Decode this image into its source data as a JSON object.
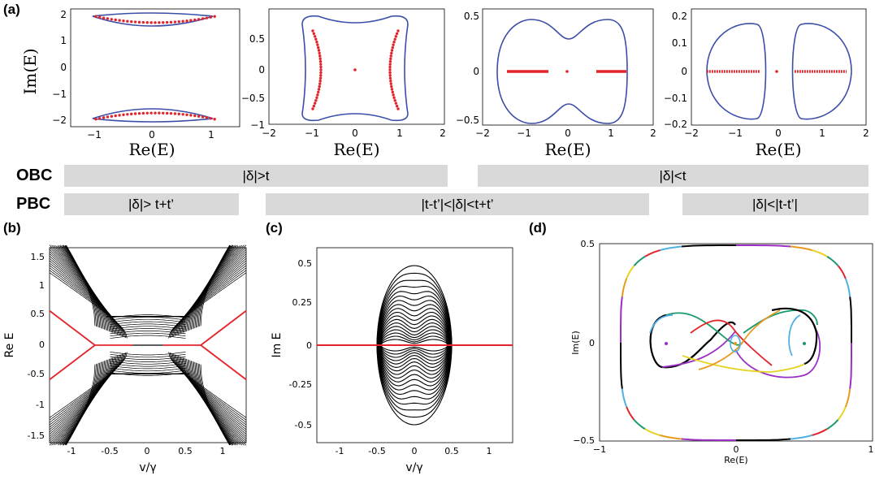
{
  "panel_labels": {
    "a": "(a)",
    "b": "(b)",
    "c": "(c)",
    "d": "(d)"
  },
  "panel_a": {
    "ylabel": "Im(E)",
    "xlabel": "Re(E)",
    "subplots": [
      {
        "xticks": [
          "−1",
          "0",
          "1"
        ],
        "yticks": [
          "2",
          "1",
          "0",
          "−1",
          "−2"
        ]
      },
      {
        "xticks": [
          "−2",
          "−1",
          "0",
          "1",
          "2"
        ],
        "yticks": [
          "0.5",
          "0",
          "−0.5",
          "−1"
        ]
      },
      {
        "xticks": [
          "−2",
          "−1",
          "0",
          "1",
          "2"
        ],
        "yticks": [
          "0.5",
          "0",
          "−0.5"
        ]
      },
      {
        "xticks": [
          "−2",
          "−1",
          "0",
          "1",
          "2"
        ],
        "yticks": [
          "0.2",
          "0.1",
          "0",
          "−0.1",
          "−0.2"
        ]
      }
    ]
  },
  "phase_rows": {
    "obc": {
      "label": "OBC",
      "regions": [
        "|δ|>t",
        "|δ|<t"
      ]
    },
    "pbc": {
      "label": "PBC",
      "regions": [
        "|δ|> t+t’",
        "|t-t’|<|δ|<t+t’",
        "|δ|<|t-t’|"
      ]
    }
  },
  "panel_b": {
    "ylabel": "Re E",
    "xlabel": "v/γ",
    "xticks": [
      "-1",
      "-0.5",
      "0",
      "0.5",
      "1"
    ],
    "yticks": [
      "1.5",
      "1",
      "0.5",
      "0",
      "-0.5",
      "-1",
      "-1.5"
    ]
  },
  "panel_c": {
    "ylabel": "Im E",
    "xlabel": "v/γ",
    "xticks": [
      "-1",
      "-0.5",
      "0",
      "0.5",
      "1"
    ],
    "yticks": [
      "0.5",
      "0.25",
      "0",
      "-0.25",
      "-0.5"
    ]
  },
  "panel_d": {
    "ylabel": "Im(E)",
    "xlabel": "Re(E)",
    "xticks": [
      "−1",
      "0",
      "1"
    ],
    "yticks": [
      "0.5",
      "0",
      "−0.5"
    ]
  },
  "colors": {
    "blue": "#3b4ea8",
    "red": "#e3242b",
    "black": "#000000",
    "purple": "#9b2fc4",
    "orange": "#e89a1c",
    "green": "#1a9a6c",
    "cyan": "#4fb1e3",
    "yellow": "#e6d422",
    "band": "#d9d9d9"
  },
  "chart_data": [
    {
      "type": "scatter",
      "panel": "a1",
      "x_range": [
        -1.35,
        1.35
      ],
      "y_range": [
        -2.15,
        2.15
      ],
      "series": [
        {
          "name": "",
          "kind": "PBC loop",
          "values": "two closed crescent loops around Im=±1.7, Re in [-1,1]"
        },
        {
          "name": "",
          "kind": "OBC points",
          "values": "arcs Im=±(1.9-0.25*(1-x^2)), x in [-0.95,0.95]"
        }
      ]
    },
    {
      "type": "scatter",
      "panel": "a2",
      "x_range": [
        -2,
        2
      ],
      "y_range": [
        -1,
        0.8
      ],
      "series": [
        {
          "name": "",
          "kind": "PBC loop",
          "values": "rounded rectangle-like loop, Re in [-1.25,1.25], Im in [-0.9,0.73]"
        },
        {
          "name": "",
          "kind": "OBC points",
          "values": "two arcs at Re≈±1 curving inward, Im in [-0.65,0.65]; point at 0"
        }
      ]
    },
    {
      "type": "scatter",
      "panel": "a3",
      "x_range": [
        -2,
        2
      ],
      "y_range": [
        -0.55,
        0.55
      ],
      "series": [
        {
          "name": "",
          "kind": "PBC loop",
          "values": "peanut-shaped loop, Re in [-1.3,1.4], Im in [-0.5,0.5]"
        },
        {
          "name": "",
          "kind": "OBC points",
          "values": "Im=0 for Re in [-1.25,-0.7] and [0.7,1.35]; point at 0"
        }
      ]
    },
    {
      "type": "scatter",
      "panel": "a4",
      "x_range": [
        -2,
        2
      ],
      "y_range": [
        -0.22,
        0.22
      ],
      "series": [
        {
          "name": "",
          "kind": "PBC loops",
          "values": "two separate loops, Re in [-1.6,-0.45] and [0.45,1.6]"
        },
        {
          "name": "",
          "kind": "OBC points",
          "values": "Im=0 for Re in [-1.5,-0.4] and [0.4,1.55]; point at 0"
        }
      ]
    },
    {
      "type": "line",
      "panel": "b",
      "x_range": [
        -1.3,
        1.3
      ],
      "y_range": [
        -1.7,
        1.7
      ],
      "series": [
        {
          "name": "",
          "kind": "bulk bands (black)",
          "values": "family of curves E=±sqrt(v^2-c^2) bounded by |E|>=0.5 outside |v|<0.5"
        },
        {
          "name": "",
          "kind": "edge modes (red)",
          "values": "E=±(|v|-0.7) style crossing curves meeting near v=±0.2, E=0"
        }
      ]
    },
    {
      "type": "line",
      "panel": "c",
      "x_range": [
        -1.3,
        1.3
      ],
      "y_range": [
        -0.6,
        0.6
      ],
      "series": [
        {
          "name": "",
          "kind": "bulk (black)",
          "values": "nested loops filling |v|<0.5, |Im E|<=0.5"
        },
        {
          "name": "",
          "kind": "edge (red)",
          "values": "Im E = 0 for all v"
        }
      ]
    },
    {
      "type": "line",
      "panel": "d",
      "x_range": [
        -1,
        1
      ],
      "y_range": [
        -0.5,
        0.5
      ],
      "series": [
        {
          "name": "",
          "kind": "outer loop",
          "values": "rounded rectangle, Re in [-0.85,0.85], Im in [-0.5,0.5], multicolored segments"
        },
        {
          "name": "",
          "kind": "inner loops",
          "values": "colored figure-eight curves around Re=-0.5,0,0.5"
        }
      ]
    }
  ]
}
